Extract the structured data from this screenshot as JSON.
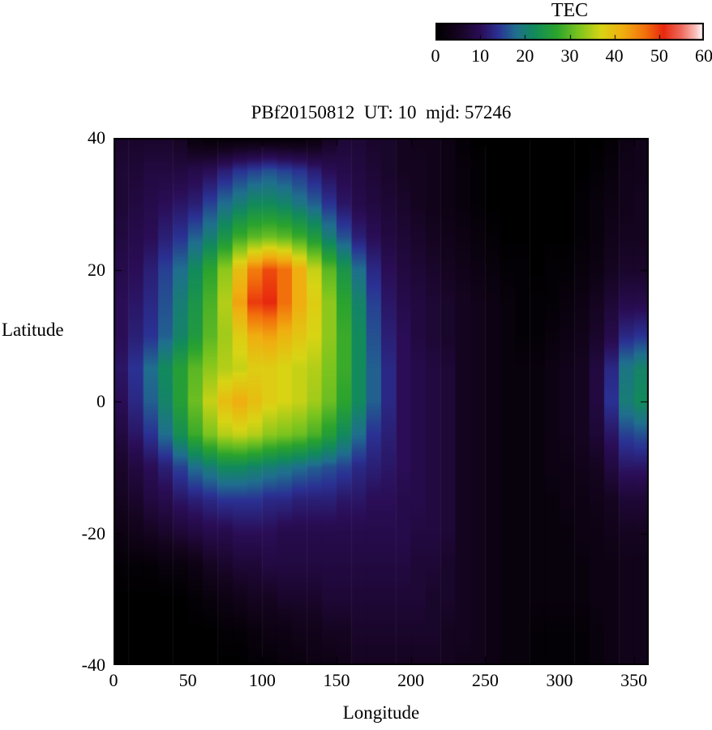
{
  "title": "PBf20150812  UT: 10  mjd: 57246",
  "colorbar": {
    "label": "TEC",
    "min": 0,
    "max": 60,
    "ticks": [
      0,
      10,
      20,
      30,
      40,
      50,
      60
    ]
  },
  "axes": {
    "xlabel": "Longitude",
    "ylabel": "Latitude",
    "xlim": [
      0,
      360
    ],
    "ylim": [
      -40,
      40
    ],
    "xticks": [
      0,
      50,
      100,
      150,
      200,
      250,
      300,
      350
    ],
    "yticks": [
      40,
      20,
      0,
      -20,
      -40
    ]
  },
  "chart_data": {
    "type": "heatmap",
    "title": "PBf20150812  UT: 10  mjd: 57246",
    "xlabel": "Longitude",
    "ylabel": "Latitude",
    "value_label": "TEC",
    "value_range": [
      0,
      60
    ],
    "x_start": 0,
    "x_step": 10,
    "x_count": 36,
    "y_start": 40,
    "y_step": -5,
    "y_count": 17,
    "palette": [
      [
        0,
        "#000000"
      ],
      [
        5,
        "#150420"
      ],
      [
        10,
        "#2a0d56"
      ],
      [
        14,
        "#2a3193"
      ],
      [
        18,
        "#1f6f8e"
      ],
      [
        22,
        "#128a5c"
      ],
      [
        27,
        "#2aa32e"
      ],
      [
        32,
        "#7cc41e"
      ],
      [
        37,
        "#d8d414"
      ],
      [
        42,
        "#f0ae10"
      ],
      [
        47,
        "#f2700c"
      ],
      [
        51,
        "#e8280e"
      ],
      [
        55,
        "#ee6a5c"
      ],
      [
        58,
        "#f9b8b4"
      ],
      [
        60,
        "#ffffff"
      ]
    ],
    "values": [
      [
        6,
        6,
        6,
        6,
        5,
        2,
        1,
        1,
        1,
        1,
        1,
        1,
        1,
        2,
        5,
        7,
        7,
        6,
        6,
        5,
        4,
        4,
        3,
        1,
        0,
        0,
        0,
        0,
        0,
        0,
        0,
        0,
        0,
        1,
        3,
        4
      ],
      [
        7,
        7,
        8,
        8,
        8,
        9,
        10,
        12,
        14,
        15,
        16,
        15,
        14,
        12,
        10,
        9,
        8,
        7,
        6,
        5,
        5,
        4,
        3,
        2,
        1,
        0,
        0,
        0,
        0,
        0,
        0,
        0,
        1,
        2,
        4,
        4
      ],
      [
        7,
        8,
        9,
        10,
        11,
        12,
        15,
        18,
        20,
        22,
        22,
        21,
        19,
        17,
        14,
        11,
        9,
        8,
        7,
        6,
        5,
        4,
        3,
        2,
        1,
        0,
        0,
        0,
        0,
        0,
        0,
        1,
        2,
        3,
        4,
        5
      ],
      [
        8,
        9,
        10,
        12,
        14,
        17,
        20,
        24,
        28,
        30,
        31,
        30,
        28,
        25,
        20,
        16,
        12,
        10,
        8,
        7,
        6,
        5,
        4,
        3,
        2,
        1,
        0,
        0,
        0,
        0,
        0,
        1,
        2,
        4,
        5,
        5
      ],
      [
        9,
        10,
        12,
        15,
        18,
        22,
        27,
        33,
        40,
        46,
        49,
        47,
        42,
        36,
        30,
        24,
        18,
        13,
        10,
        8,
        7,
        6,
        5,
        4,
        3,
        2,
        1,
        1,
        0,
        1,
        1,
        2,
        3,
        5,
        6,
        6
      ],
      [
        10,
        11,
        13,
        16,
        20,
        24,
        29,
        35,
        43,
        50,
        51,
        47,
        42,
        38,
        33,
        27,
        21,
        15,
        11,
        9,
        8,
        7,
        6,
        5,
        4,
        3,
        2,
        1,
        1,
        1,
        2,
        3,
        5,
        7,
        9,
        9
      ],
      [
        10,
        12,
        14,
        17,
        21,
        25,
        30,
        34,
        38,
        42,
        43,
        41,
        39,
        37,
        33,
        28,
        22,
        16,
        12,
        10,
        8,
        7,
        6,
        5,
        4,
        3,
        2,
        1,
        1,
        2,
        3,
        4,
        6,
        9,
        13,
        14
      ],
      [
        11,
        14,
        18,
        22,
        26,
        30,
        33,
        35,
        36,
        38,
        38,
        37,
        36,
        35,
        32,
        28,
        22,
        17,
        13,
        10,
        9,
        8,
        7,
        5,
        4,
        3,
        2,
        2,
        2,
        3,
        4,
        5,
        8,
        13,
        19,
        21
      ],
      [
        10,
        13,
        17,
        21,
        26,
        31,
        36,
        40,
        42,
        40,
        38,
        37,
        36,
        34,
        31,
        27,
        22,
        17,
        13,
        10,
        9,
        8,
        7,
        5,
        4,
        3,
        2,
        2,
        2,
        3,
        4,
        5,
        8,
        14,
        20,
        22
      ],
      [
        8,
        11,
        14,
        18,
        23,
        28,
        32,
        35,
        36,
        35,
        33,
        32,
        31,
        29,
        26,
        22,
        18,
        14,
        12,
        10,
        9,
        8,
        7,
        5,
        4,
        3,
        2,
        2,
        2,
        3,
        4,
        5,
        7,
        11,
        15,
        16
      ],
      [
        6,
        8,
        10,
        12,
        15,
        18,
        20,
        22,
        22,
        21,
        20,
        19,
        18,
        17,
        16,
        15,
        13,
        12,
        11,
        10,
        9,
        8,
        7,
        5,
        4,
        3,
        2,
        2,
        2,
        3,
        3,
        4,
        5,
        8,
        11,
        11
      ],
      [
        5,
        6,
        8,
        9,
        11,
        12,
        13,
        14,
        14,
        14,
        13,
        13,
        12,
        12,
        12,
        11,
        11,
        10,
        10,
        9,
        9,
        8,
        7,
        5,
        4,
        3,
        2,
        2,
        2,
        2,
        3,
        3,
        4,
        5,
        7,
        7
      ],
      [
        3,
        4,
        5,
        6,
        7,
        8,
        9,
        9,
        10,
        10,
        10,
        9,
        9,
        9,
        9,
        9,
        9,
        9,
        9,
        9,
        8,
        8,
        7,
        5,
        4,
        3,
        2,
        2,
        2,
        2,
        2,
        3,
        3,
        4,
        5,
        5
      ],
      [
        1,
        1,
        1,
        2,
        2,
        3,
        5,
        6,
        7,
        7,
        8,
        8,
        8,
        8,
        8,
        8,
        8,
        8,
        8,
        8,
        7,
        7,
        6,
        5,
        4,
        3,
        2,
        2,
        2,
        2,
        2,
        2,
        3,
        3,
        4,
        4
      ],
      [
        0,
        0,
        0,
        0,
        0,
        1,
        2,
        3,
        4,
        5,
        5,
        6,
        6,
        6,
        7,
        7,
        7,
        7,
        7,
        7,
        7,
        6,
        6,
        5,
        4,
        3,
        2,
        2,
        2,
        2,
        2,
        2,
        3,
        3,
        4,
        4
      ],
      [
        0,
        0,
        0,
        0,
        0,
        0,
        0,
        1,
        1,
        2,
        3,
        3,
        4,
        4,
        5,
        5,
        6,
        6,
        6,
        6,
        6,
        6,
        5,
        5,
        4,
        3,
        2,
        2,
        1,
        1,
        1,
        1,
        2,
        3,
        4,
        4
      ],
      [
        0,
        0,
        0,
        0,
        0,
        0,
        0,
        0,
        0,
        1,
        1,
        2,
        2,
        3,
        3,
        4,
        5,
        5,
        5,
        5,
        5,
        5,
        5,
        4,
        4,
        3,
        2,
        2,
        1,
        1,
        1,
        1,
        2,
        3,
        4,
        4
      ]
    ]
  }
}
